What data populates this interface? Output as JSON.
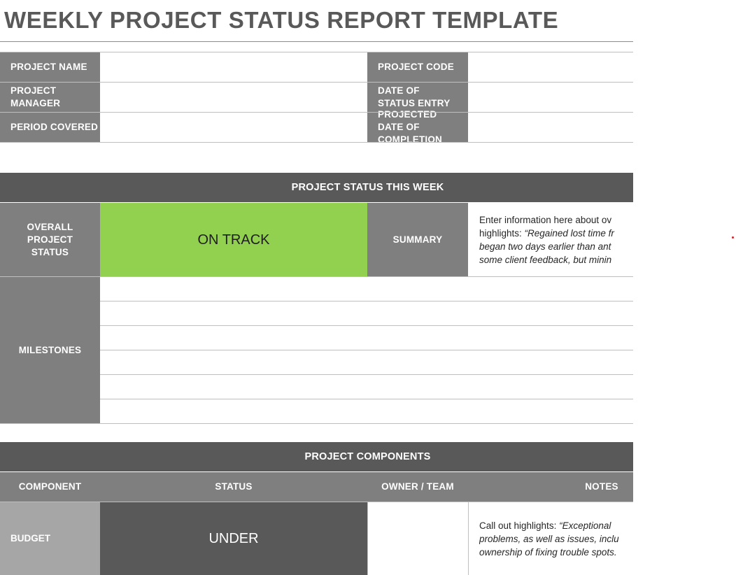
{
  "title": "WEEKLY PROJECT STATUS REPORT TEMPLATE",
  "header": {
    "project_name_label": "PROJECT NAME",
    "project_manager_label": "PROJECT MANAGER",
    "period_covered_label": "PERIOD COVERED",
    "project_code_label": "PROJECT CODE",
    "date_of_status_entry_label": "DATE OF STATUS ENTRY",
    "projected_date_label": "PROJECTED DATE OF COMPLETION",
    "project_name_value": "",
    "project_manager_value": "",
    "period_covered_value": "",
    "project_code_value": "",
    "date_of_status_entry_value": "",
    "projected_date_value": ""
  },
  "status_section": {
    "heading": "PROJECT STATUS THIS WEEK",
    "overall_label": "OVERALL PROJECT STATUS",
    "overall_value": "ON TRACK",
    "summary_label": "SUMMARY",
    "summary_text": {
      "line1": "Enter information here about ov",
      "line2_prefix": "highlights: ",
      "line2_italic": "“Regained lost time fr",
      "line3": "began two days earlier than ant",
      "line4": "some client feedback, but minin"
    },
    "milestones_label": "MILESTONES",
    "milestones": [
      "",
      "",
      "",
      "",
      "",
      ""
    ]
  },
  "components_section": {
    "heading": "PROJECT COMPONENTS",
    "columns": [
      "COMPONENT",
      "STATUS",
      "OWNER / TEAM",
      "NOTES"
    ],
    "rows": [
      {
        "component": "BUDGET",
        "status": "UNDER",
        "owner": "",
        "notes_line1_prefix": "Call out highlights: ",
        "notes_line1_italic": "“Exceptional",
        "notes_line2": "problems, as well as issues, inclu",
        "notes_line3": "ownership of fixing trouble spots."
      }
    ]
  },
  "colors": {
    "dark_gray": "#7f7f7f",
    "darker_gray": "#595959",
    "light_gray": "#a6a6a6",
    "on_track_green": "#92d050"
  }
}
